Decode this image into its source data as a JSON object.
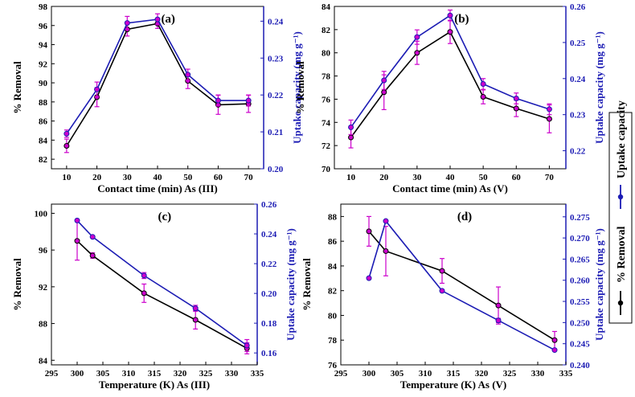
{
  "colors": {
    "removal": "#000000",
    "uptake": "#1c1cb4",
    "errorbar": "#cc00cc",
    "marker_fill": "#cc00cc"
  },
  "legend": {
    "removal": "% Removal",
    "uptake": "Uptake capacity"
  },
  "chart_data": [
    {
      "panel": "(a)",
      "type": "line",
      "xlabel": "Contact time (min) As (III)",
      "ylabel": "% Removal",
      "y2label": "Uptake capacity (mg g⁻¹)",
      "xlim": [
        5,
        75
      ],
      "xticks": [
        10,
        20,
        30,
        40,
        50,
        60,
        70
      ],
      "ylim": [
        81,
        98
      ],
      "yticks": [
        82,
        84,
        86,
        88,
        90,
        92,
        94,
        96,
        98
      ],
      "y2lim": [
        0.2,
        0.244
      ],
      "y2ticks": [
        0.2,
        0.21,
        0.22,
        0.23,
        0.24
      ],
      "y2tick_labels": [
        "0.20",
        "0.21",
        "0.22",
        "0.23",
        "0.24"
      ],
      "series": [
        {
          "name": "% Removal",
          "axis": "left",
          "x": [
            10,
            20,
            30,
            40,
            50,
            60,
            70
          ],
          "y": [
            83.4,
            88.5,
            95.6,
            96.2,
            90.2,
            87.7,
            87.8
          ],
          "err": [
            0.7,
            1.0,
            0.7,
            0.5,
            0.8,
            1.0,
            0.9
          ]
        },
        {
          "name": "Uptake capacity",
          "axis": "right",
          "x": [
            10,
            20,
            30,
            40,
            50,
            60,
            70
          ],
          "y": [
            0.2095,
            0.2215,
            0.2395,
            0.2405,
            0.2255,
            0.2185,
            0.2185
          ],
          "err": [
            0.001,
            0.002,
            0.0018,
            0.0015,
            0.0015,
            0.0015,
            0.0015
          ]
        }
      ]
    },
    {
      "panel": "(b)",
      "type": "line",
      "xlabel": "Contact time (min) As (V)",
      "ylabel": "% Removal",
      "y2label": "Uptake capacity (mg g⁻¹)",
      "xlim": [
        5,
        75
      ],
      "xticks": [
        10,
        20,
        30,
        40,
        50,
        60,
        70
      ],
      "ylim": [
        70,
        84
      ],
      "yticks": [
        70,
        72,
        74,
        76,
        78,
        80,
        82,
        84
      ],
      "y2lim": [
        0.215,
        0.26
      ],
      "y2ticks": [
        0.22,
        0.23,
        0.24,
        0.25,
        0.26
      ],
      "y2tick_labels": [
        "0.22",
        "0.23",
        "0.24",
        "0.25",
        "0.26"
      ],
      "series": [
        {
          "name": "% Removal",
          "axis": "left",
          "x": [
            10,
            20,
            30,
            40,
            50,
            60,
            70
          ],
          "y": [
            72.7,
            76.6,
            80.0,
            81.8,
            76.2,
            75.2,
            74.3
          ],
          "err": [
            0.9,
            1.5,
            1.0,
            1.0,
            0.6,
            0.7,
            1.2
          ]
        },
        {
          "name": "Uptake capacity",
          "axis": "right",
          "x": [
            10,
            20,
            30,
            40,
            50,
            60,
            70
          ],
          "y": [
            0.2265,
            0.2395,
            0.2515,
            0.2575,
            0.2385,
            0.2345,
            0.2315
          ],
          "err": [
            0.002,
            0.0025,
            0.002,
            0.0015,
            0.0015,
            0.0015,
            0.0015
          ]
        }
      ]
    },
    {
      "panel": "(c)",
      "type": "line",
      "xlabel": "Temperature (K) As (III)",
      "ylabel": "% Removal",
      "y2label": "Uptake capacity (mg g⁻¹)",
      "xlim": [
        295,
        335
      ],
      "xticks": [
        295,
        300,
        305,
        310,
        315,
        320,
        325,
        330,
        335
      ],
      "ylim": [
        83.5,
        101
      ],
      "yticks": [
        84,
        88,
        92,
        96,
        100
      ],
      "y2lim": [
        0.152,
        0.26
      ],
      "y2ticks": [
        0.16,
        0.18,
        0.2,
        0.22,
        0.24,
        0.26
      ],
      "y2tick_labels": [
        "0.16",
        "0.18",
        "0.20",
        "0.22",
        "0.24",
        "0.26"
      ],
      "series": [
        {
          "name": "% Removal",
          "axis": "left",
          "x": [
            300,
            303,
            313,
            323,
            333
          ],
          "y": [
            97.0,
            95.4,
            91.3,
            88.4,
            85.3
          ],
          "err": [
            2.1,
            0.3,
            1.0,
            1.0,
            0.6
          ]
        },
        {
          "name": "Uptake capacity",
          "axis": "right",
          "x": [
            300,
            303,
            313,
            323,
            333
          ],
          "y": [
            0.249,
            0.238,
            0.212,
            0.19,
            0.165
          ],
          "err": [
            0.0,
            0.0,
            0.002,
            0.002,
            0.004
          ]
        }
      ]
    },
    {
      "panel": "(d)",
      "type": "line",
      "xlabel": "Temperature (K) As (V)",
      "ylabel": "% Removal",
      "y2label": "Uptake capacity (mg g⁻¹)",
      "xlim": [
        295,
        335
      ],
      "xticks": [
        295,
        300,
        305,
        310,
        315,
        320,
        325,
        330,
        335
      ],
      "ylim": [
        76,
        89
      ],
      "yticks": [
        76,
        78,
        80,
        82,
        84,
        86,
        88
      ],
      "y2lim": [
        0.24,
        0.278
      ],
      "y2ticks": [
        0.24,
        0.245,
        0.25,
        0.255,
        0.26,
        0.265,
        0.27,
        0.275
      ],
      "y2tick_labels": [
        "0.240",
        "0.245",
        "0.250",
        "0.255",
        "0.260",
        "0.265",
        "0.270",
        "0.275"
      ],
      "series": [
        {
          "name": "% Removal",
          "axis": "left",
          "x": [
            300,
            303,
            313,
            323,
            333
          ],
          "y": [
            86.8,
            85.2,
            83.6,
            80.8,
            78.0
          ],
          "err": [
            1.2,
            2.0,
            1.0,
            1.5,
            0.7
          ]
        },
        {
          "name": "Uptake capacity",
          "axis": "right",
          "x": [
            300,
            303,
            313,
            323,
            333
          ],
          "y": [
            0.2605,
            0.274,
            0.2575,
            0.2505,
            0.2435
          ],
          "err": [
            0.0,
            0.0,
            0.0,
            0.0005,
            0.0
          ]
        }
      ]
    }
  ]
}
